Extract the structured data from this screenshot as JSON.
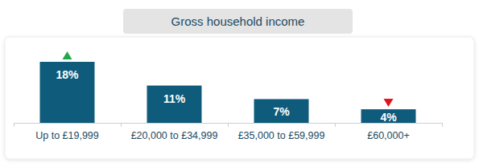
{
  "chart_data": {
    "type": "bar",
    "title": "Gross household income",
    "categories": [
      "Up to £19,999",
      "£20,000 to £34,999",
      "£35,000 to £59,999",
      "£60,000+"
    ],
    "values": [
      18,
      11,
      7,
      4
    ],
    "value_labels": [
      "18%",
      "11%",
      "7%",
      "4%"
    ],
    "color": "#0f5b7b",
    "ylim": [
      0,
      18
    ],
    "data_labels": true,
    "tick_labels": "x",
    "grid": false,
    "annotations": [
      {
        "category": 0,
        "marker": "up",
        "color": "#22a846"
      },
      {
        "category": 3,
        "marker": "down",
        "color": "#e3141b"
      }
    ]
  }
}
